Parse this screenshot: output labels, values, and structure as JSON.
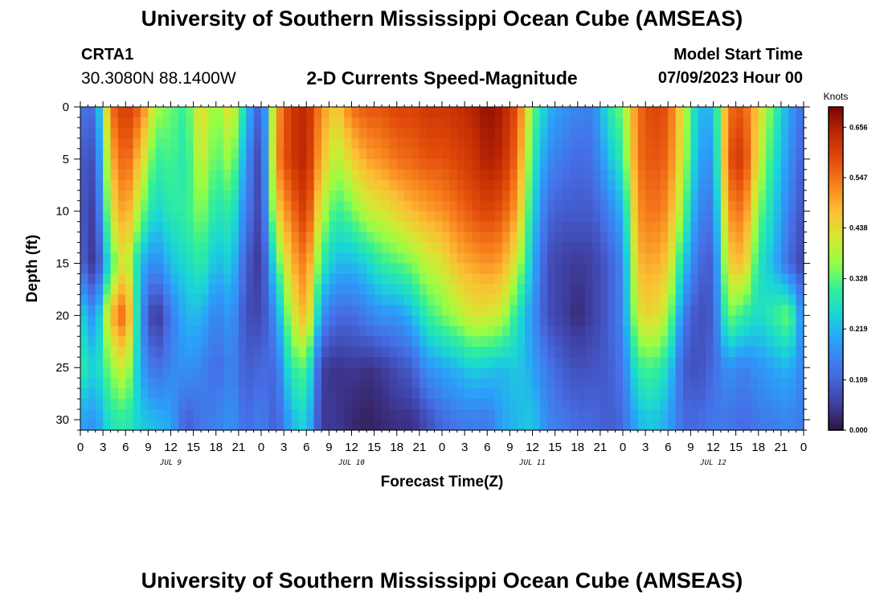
{
  "header": {
    "title": "University of Southern Mississippi Ocean Cube (AMSEAS)",
    "station_name": "CRTA1",
    "station_coords": "30.3080N  88.1400W",
    "subtitle": "2-D Currents Speed-Magnitude",
    "model_start_label": "Model Start Time",
    "model_start_value": "07/09/2023 Hour 00"
  },
  "footer": {
    "title": "University of Southern Mississippi Ocean Cube (AMSEAS)"
  },
  "chart_data": {
    "type": "heatmap",
    "title": "2-D Currents Speed-Magnitude",
    "xlabel": "Forecast Time(Z)",
    "ylabel": "Depth (ft)",
    "x_unit": "hours since 07/09/2023 00Z",
    "xlim": [
      0,
      96
    ],
    "ylim": [
      0,
      31
    ],
    "y_inverted": true,
    "x_ticks": [
      0,
      3,
      6,
      9,
      12,
      15,
      18,
      21,
      24,
      27,
      30,
      33,
      36,
      39,
      42,
      45,
      48,
      51,
      54,
      57,
      60,
      63,
      66,
      69,
      72,
      75,
      78,
      81,
      84,
      87,
      90,
      93,
      96
    ],
    "x_tick_labels": [
      "0",
      "3",
      "6",
      "9",
      "12",
      "15",
      "18",
      "21",
      "0",
      "3",
      "6",
      "9",
      "12",
      "15",
      "18",
      "21",
      "0",
      "3",
      "6",
      "9",
      "12",
      "15",
      "18",
      "21",
      "0",
      "3",
      "6",
      "9",
      "12",
      "15",
      "18",
      "21",
      "0"
    ],
    "y_ticks": [
      0,
      5,
      10,
      15,
      20,
      25,
      30
    ],
    "y_tick_labels": [
      "0",
      "5",
      "10",
      "15",
      "20",
      "25",
      "30"
    ],
    "date_labels": [
      {
        "hour": 12,
        "label": "JUL 9"
      },
      {
        "hour": 36,
        "label": "JUL 10"
      },
      {
        "hour": 60,
        "label": "JUL 11"
      },
      {
        "hour": 84,
        "label": "JUL 12"
      }
    ],
    "colorbar": {
      "title": "Knots",
      "min": 0.0,
      "max": 0.7,
      "ticks": [
        0.0,
        0.109,
        0.219,
        0.328,
        0.438,
        0.547,
        0.656
      ],
      "tick_labels": [
        "0.000",
        "0.109",
        "0.219",
        "0.328",
        "0.438",
        "0.547",
        "0.656"
      ]
    },
    "speed_field_by_hour": {
      "hours": [
        0,
        2,
        4,
        6,
        8,
        10,
        12,
        14,
        16,
        18,
        20,
        22,
        24,
        26,
        28,
        30,
        32,
        34,
        36,
        38,
        40,
        42,
        44,
        46,
        48,
        50,
        52,
        54,
        56,
        58,
        60,
        62,
        64,
        66,
        68,
        70,
        72,
        74,
        76,
        78,
        80,
        82,
        84,
        86,
        88,
        90,
        92,
        94,
        96
      ],
      "depths_ft": [
        0,
        5,
        10,
        15,
        20,
        25,
        30
      ],
      "values_knots": [
        [
          0.14,
          0.1,
          0.1,
          0.12,
          0.26,
          0.3,
          0.2
        ],
        [
          0.12,
          0.08,
          0.05,
          0.03,
          0.16,
          0.24,
          0.18
        ],
        [
          0.55,
          0.48,
          0.42,
          0.3,
          0.48,
          0.36,
          0.28
        ],
        [
          0.62,
          0.58,
          0.52,
          0.45,
          0.58,
          0.42,
          0.3
        ],
        [
          0.56,
          0.46,
          0.36,
          0.22,
          0.18,
          0.2,
          0.24
        ],
        [
          0.38,
          0.3,
          0.25,
          0.16,
          0.03,
          0.12,
          0.22
        ],
        [
          0.34,
          0.32,
          0.29,
          0.23,
          0.14,
          0.16,
          0.2
        ],
        [
          0.3,
          0.28,
          0.3,
          0.26,
          0.22,
          0.18,
          0.1
        ],
        [
          0.45,
          0.42,
          0.36,
          0.3,
          0.22,
          0.16,
          0.14
        ],
        [
          0.35,
          0.32,
          0.28,
          0.22,
          0.15,
          0.12,
          0.15
        ],
        [
          0.45,
          0.38,
          0.3,
          0.25,
          0.19,
          0.16,
          0.18
        ],
        [
          0.24,
          0.18,
          0.15,
          0.1,
          0.08,
          0.1,
          0.12
        ],
        [
          0.08,
          0.05,
          0.05,
          0.04,
          0.07,
          0.12,
          0.15
        ],
        [
          0.5,
          0.52,
          0.45,
          0.3,
          0.18,
          0.12,
          0.1
        ],
        [
          0.62,
          0.62,
          0.55,
          0.48,
          0.4,
          0.3,
          0.22
        ],
        [
          0.65,
          0.65,
          0.62,
          0.55,
          0.5,
          0.33,
          0.26
        ],
        [
          0.52,
          0.48,
          0.4,
          0.3,
          0.18,
          0.06,
          0.05
        ],
        [
          0.45,
          0.38,
          0.3,
          0.22,
          0.12,
          0.04,
          0.05
        ],
        [
          0.55,
          0.45,
          0.34,
          0.22,
          0.12,
          0.05,
          0.03
        ],
        [
          0.58,
          0.5,
          0.4,
          0.25,
          0.15,
          0.04,
          0.02
        ],
        [
          0.58,
          0.52,
          0.42,
          0.3,
          0.18,
          0.05,
          0.03
        ],
        [
          0.6,
          0.55,
          0.45,
          0.32,
          0.18,
          0.08,
          0.04
        ],
        [
          0.6,
          0.56,
          0.48,
          0.35,
          0.22,
          0.1,
          0.04
        ],
        [
          0.62,
          0.58,
          0.5,
          0.4,
          0.3,
          0.18,
          0.08
        ],
        [
          0.62,
          0.58,
          0.52,
          0.42,
          0.34,
          0.2,
          0.12
        ],
        [
          0.63,
          0.6,
          0.55,
          0.48,
          0.38,
          0.22,
          0.14
        ],
        [
          0.65,
          0.62,
          0.58,
          0.5,
          0.42,
          0.25,
          0.15
        ],
        [
          0.68,
          0.66,
          0.6,
          0.52,
          0.42,
          0.24,
          0.14
        ],
        [
          0.66,
          0.64,
          0.58,
          0.5,
          0.4,
          0.22,
          0.2
        ],
        [
          0.58,
          0.55,
          0.5,
          0.4,
          0.28,
          0.24,
          0.22
        ],
        [
          0.35,
          0.3,
          0.26,
          0.22,
          0.18,
          0.2,
          0.24
        ],
        [
          0.22,
          0.17,
          0.12,
          0.08,
          0.08,
          0.14,
          0.16
        ],
        [
          0.18,
          0.14,
          0.1,
          0.06,
          0.06,
          0.1,
          0.14
        ],
        [
          0.16,
          0.12,
          0.1,
          0.05,
          0.03,
          0.08,
          0.12
        ],
        [
          0.15,
          0.13,
          0.1,
          0.06,
          0.06,
          0.09,
          0.12
        ],
        [
          0.28,
          0.22,
          0.15,
          0.1,
          0.1,
          0.1,
          0.1
        ],
        [
          0.35,
          0.3,
          0.22,
          0.16,
          0.16,
          0.14,
          0.12
        ],
        [
          0.55,
          0.55,
          0.52,
          0.48,
          0.42,
          0.3,
          0.22
        ],
        [
          0.6,
          0.58,
          0.55,
          0.5,
          0.45,
          0.32,
          0.24
        ],
        [
          0.58,
          0.56,
          0.52,
          0.46,
          0.38,
          0.26,
          0.2
        ],
        [
          0.42,
          0.4,
          0.35,
          0.25,
          0.15,
          0.1,
          0.12
        ],
        [
          0.22,
          0.2,
          0.16,
          0.12,
          0.08,
          0.08,
          0.12
        ],
        [
          0.22,
          0.18,
          0.14,
          0.1,
          0.1,
          0.12,
          0.14
        ],
        [
          0.55,
          0.58,
          0.52,
          0.45,
          0.35,
          0.18,
          0.14
        ],
        [
          0.58,
          0.62,
          0.55,
          0.48,
          0.3,
          0.15,
          0.12
        ],
        [
          0.45,
          0.42,
          0.35,
          0.28,
          0.26,
          0.18,
          0.14
        ],
        [
          0.32,
          0.28,
          0.25,
          0.22,
          0.3,
          0.2,
          0.15
        ],
        [
          0.2,
          0.18,
          0.15,
          0.12,
          0.35,
          0.22,
          0.16
        ],
        [
          0.12,
          0.1,
          0.08,
          0.06,
          0.15,
          0.15,
          0.14
        ]
      ]
    }
  }
}
